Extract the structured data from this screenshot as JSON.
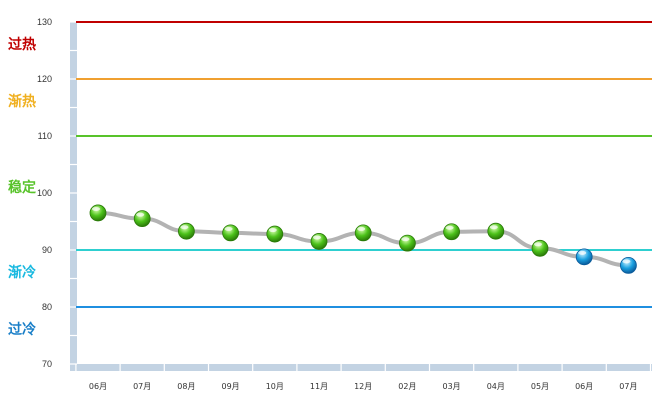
{
  "chart_data": {
    "type": "line",
    "title": "",
    "xlabel": "",
    "ylabel": "",
    "ylim": [
      70,
      130
    ],
    "yticks": [
      70,
      80,
      90,
      100,
      110,
      120,
      130
    ],
    "categories": [
      "06月",
      "07月",
      "08月",
      "09月",
      "10月",
      "11月",
      "12月",
      "02月",
      "03月",
      "04月",
      "05月",
      "06月",
      "07月"
    ],
    "series": [
      {
        "values": [
          96.5,
          95.5,
          93.3,
          93.0,
          92.8,
          91.5,
          93.0,
          91.2,
          93.2,
          93.3,
          90.3,
          88.8,
          87.3
        ]
      }
    ],
    "point_colors": [
      "green",
      "green",
      "green",
      "green",
      "green",
      "green",
      "green",
      "green",
      "green",
      "green",
      "green",
      "blue",
      "blue"
    ],
    "thresholds": [
      {
        "label": "过热",
        "value": 130,
        "color": "#c00000"
      },
      {
        "label": "渐热",
        "value": 120,
        "color": "#f0a030"
      },
      {
        "label": "稳定",
        "value": 110,
        "color": "#58c32a"
      },
      {
        "label": "渐冷",
        "value": 90,
        "color": "#2ecfd0"
      },
      {
        "label": "过冷",
        "value": 80,
        "color": "#1f8fe0"
      }
    ],
    "zone_labels": [
      {
        "text": "过热",
        "color": "#c00000"
      },
      {
        "text": "渐热",
        "color": "#f0b020"
      },
      {
        "text": "稳定",
        "color": "#58c32a"
      },
      {
        "text": "渐冷",
        "color": "#19b9e0"
      },
      {
        "text": "过冷",
        "color": "#1a7fc8"
      }
    ],
    "grid": false,
    "legend": "none"
  }
}
